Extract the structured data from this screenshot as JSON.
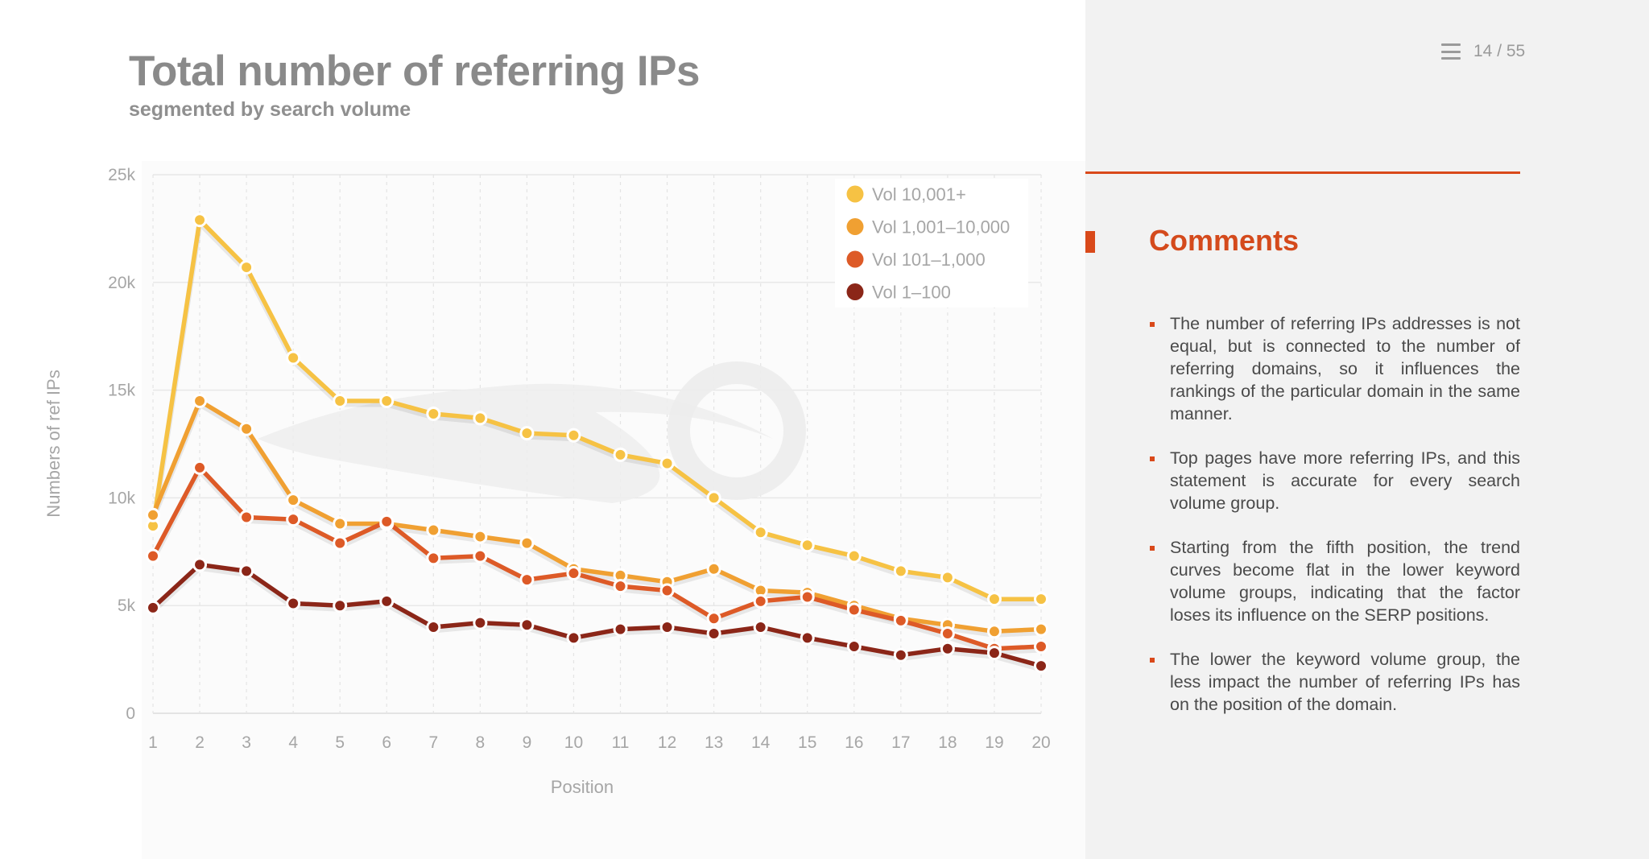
{
  "slide": {
    "title": "Total number of referring IPs",
    "subtitle": "segmented by search volume"
  },
  "nav": {
    "page_counter": "14 / 55",
    "menu_icon": "menu-icon"
  },
  "colors": {
    "accent": "#d9491a",
    "panel_bg": "#f2f2f2"
  },
  "comments": {
    "heading": "Comments",
    "items": [
      "The number of referring IPs addresses is not equal, but is connected to the number of referring domains, so it influences the rankings of the particular domain in the same manner.",
      "Top pages have more referring IPs, and this statement is accurate for every search volume group.",
      "Starting from the fifth position, the trend curves become flat in the lower keyword volume groups, indicating that the factor loses its influence on the SERP positions.",
      "The lower the keyword volume group, the less impact the number of referring IPs has on the position of the domain."
    ]
  },
  "chart_data": {
    "type": "line",
    "title": "Total number of referring IPs",
    "subtitle": "segmented by search volume",
    "xlabel": "Position",
    "ylabel": "Numbers of ref IPs",
    "x": [
      1,
      2,
      3,
      4,
      5,
      6,
      7,
      8,
      9,
      10,
      11,
      12,
      13,
      14,
      15,
      16,
      17,
      18,
      19,
      20
    ],
    "x_tick_labels": [
      "1",
      "2",
      "3",
      "4",
      "5",
      "6",
      "7",
      "8",
      "9",
      "10",
      "11",
      "12",
      "13",
      "14",
      "15",
      "16",
      "17",
      "18",
      "19",
      "20"
    ],
    "ylim": [
      0,
      25000
    ],
    "y_ticks": [
      0,
      5000,
      10000,
      15000,
      20000,
      25000
    ],
    "y_tick_labels": [
      "0",
      "5k",
      "10k",
      "15k",
      "20k",
      "25k"
    ],
    "grid": true,
    "legend_position": "top-right",
    "series": [
      {
        "name": "Vol 10,001+",
        "color": "#f6c244",
        "values": [
          8700,
          22900,
          20700,
          16500,
          14500,
          14500,
          13900,
          13700,
          13000,
          12900,
          12000,
          11600,
          10000,
          8400,
          7800,
          7300,
          6600,
          6300,
          5300,
          5300
        ]
      },
      {
        "name": "Vol 1,001–10,000",
        "color": "#f0a032",
        "values": [
          9200,
          14500,
          13200,
          9900,
          8800,
          8800,
          8500,
          8200,
          7900,
          6700,
          6400,
          6100,
          6700,
          5700,
          5600,
          5000,
          4400,
          4100,
          3800,
          3900
        ]
      },
      {
        "name": "Vol 101–1,000",
        "color": "#dd5a27",
        "values": [
          7300,
          11400,
          9100,
          9000,
          7900,
          8900,
          7200,
          7300,
          6200,
          6500,
          5900,
          5700,
          4400,
          5200,
          5400,
          4800,
          4300,
          3700,
          3000,
          3100
        ]
      },
      {
        "name": "Vol 1–100",
        "color": "#8b2618",
        "values": [
          4900,
          6900,
          6600,
          5100,
          5000,
          5200,
          4000,
          4200,
          4100,
          3500,
          3900,
          4000,
          3700,
          4000,
          3500,
          3100,
          2700,
          3000,
          2800,
          2200
        ]
      }
    ]
  }
}
